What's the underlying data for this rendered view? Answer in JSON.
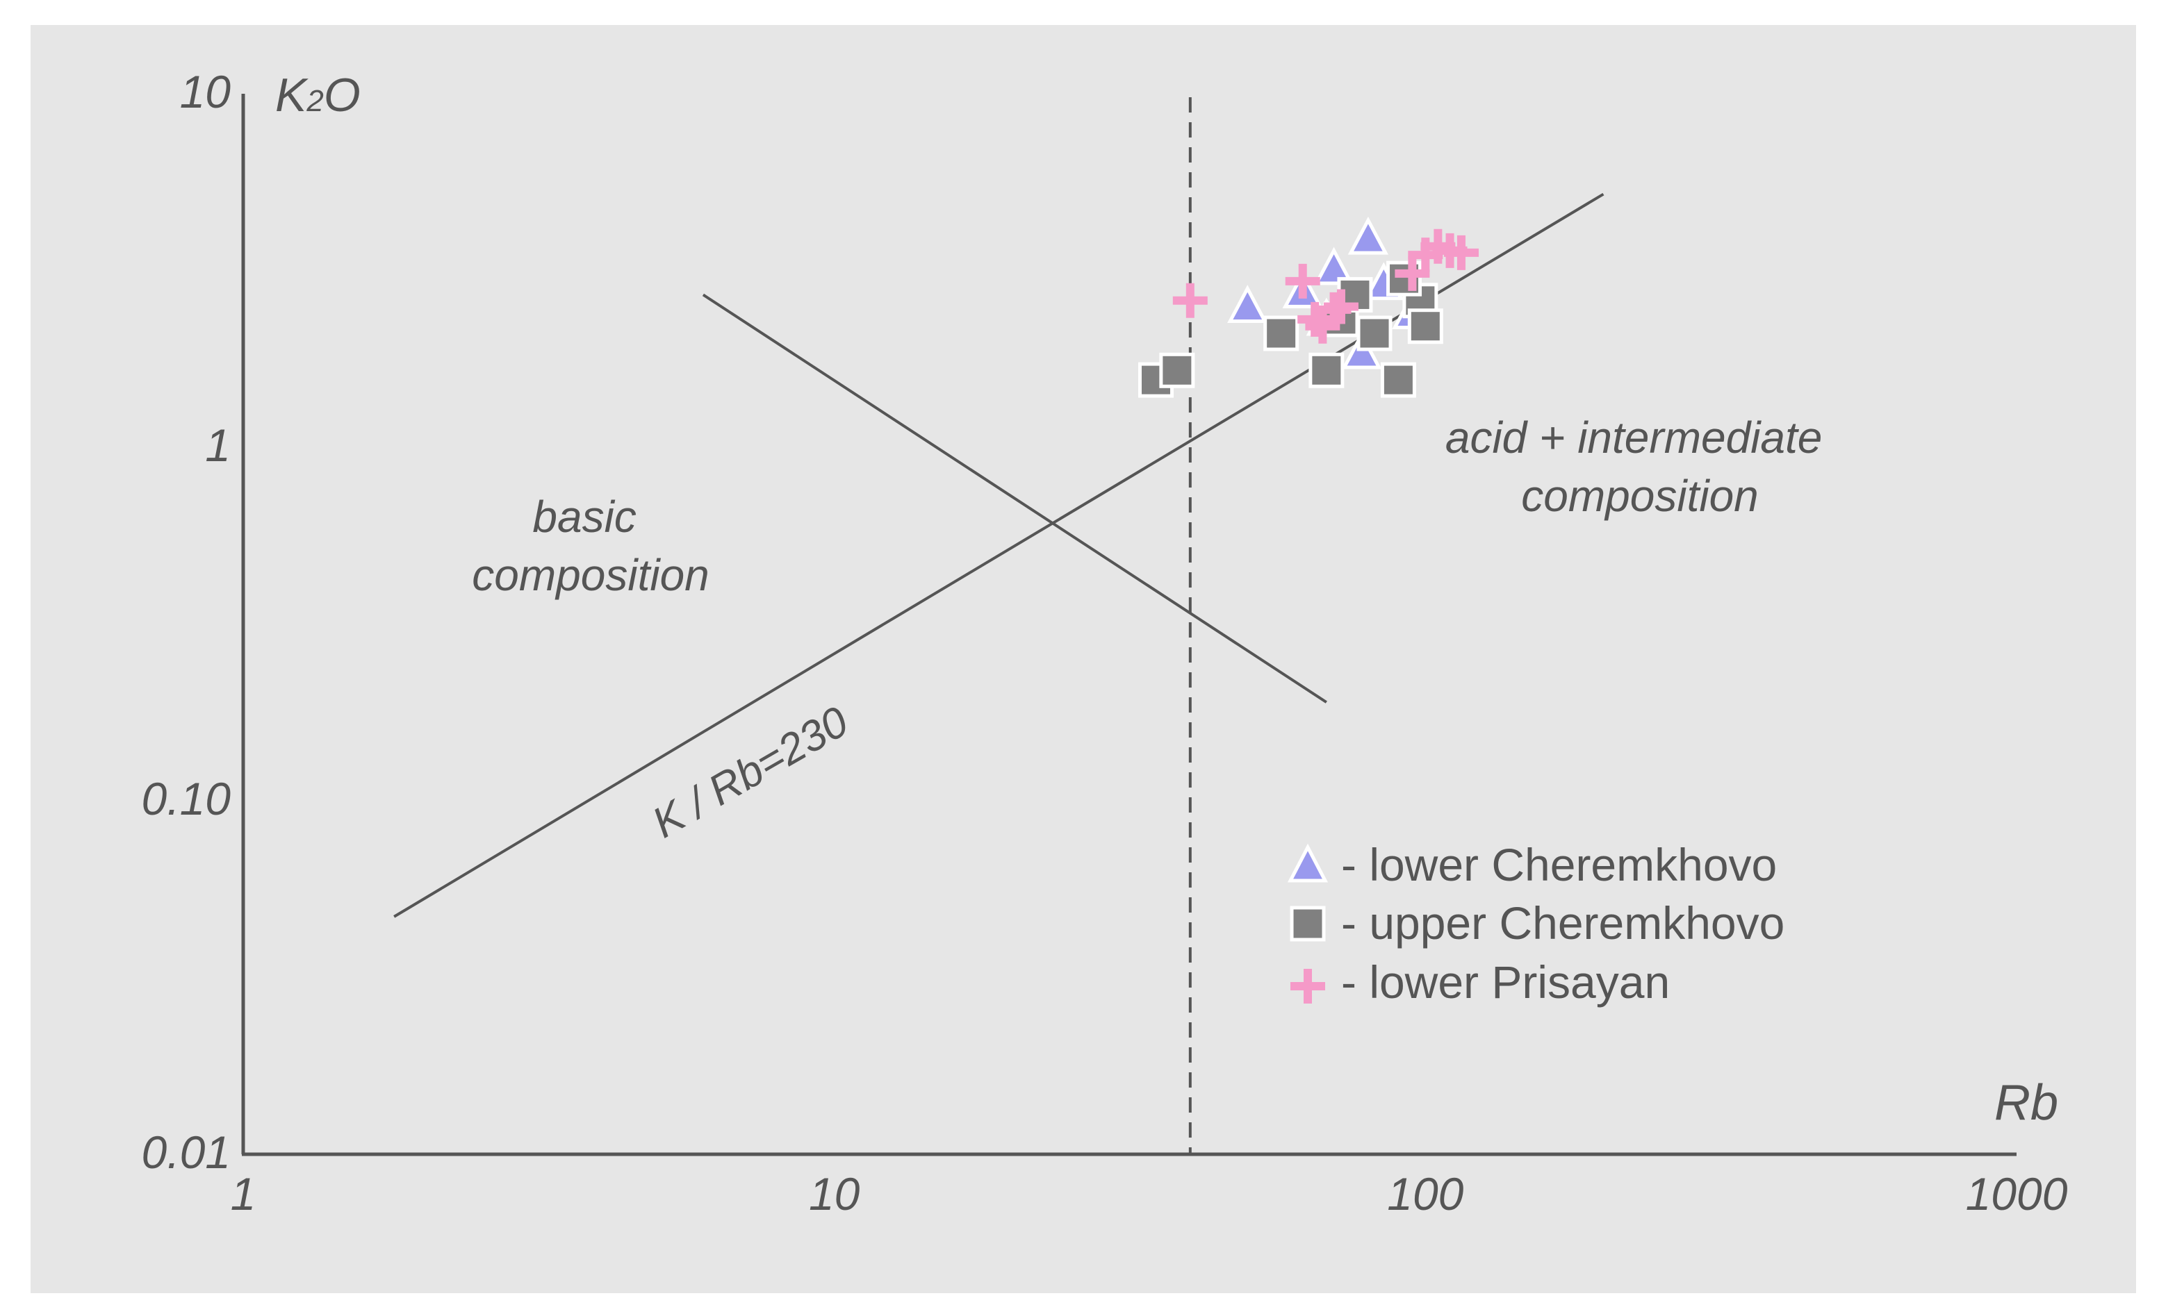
{
  "chart_data": {
    "type": "scatter",
    "xscale": "log",
    "yscale": "log",
    "xlim": [
      1,
      1000
    ],
    "ylim": [
      0.01,
      10
    ],
    "xticks": [
      "1",
      "10",
      "100",
      "1000"
    ],
    "yticks": [
      "0.01",
      "0.10",
      "1",
      "10"
    ],
    "xlabel": "Rb",
    "ylabel_main": "K",
    "ylabel_sub": "2",
    "ylabel_tail": "O",
    "grid": false,
    "legend_position": "lower-right",
    "lines": [
      {
        "name": "K / Rb=230",
        "style": "solid",
        "points": [
          [
            1.8,
            0.047
          ],
          [
            200,
            5.2
          ]
        ]
      },
      {
        "name": "boundary",
        "style": "solid",
        "points": [
          [
            6,
            2.7
          ],
          [
            68,
            0.19
          ]
        ]
      },
      {
        "name": "divider",
        "style": "dashed",
        "x": 40
      }
    ],
    "annotations": [
      {
        "lines": [
          "basic",
          "composition"
        ],
        "x": 10,
        "y": 0.55
      },
      {
        "lines": [
          "acid + intermediate",
          "composition"
        ],
        "x": 400,
        "y": 1.0
      }
    ],
    "line_label": "K / Rb=230",
    "series": [
      {
        "name": "lower Cheremkhovo",
        "marker": "triangle",
        "color": "#9999ee",
        "points": [
          [
            50,
            2.5
          ],
          [
            62,
            2.75
          ],
          [
            70,
            3.2
          ],
          [
            80,
            3.9
          ],
          [
            68,
            2.3
          ],
          [
            78,
            1.85
          ],
          [
            85,
            2.9
          ],
          [
            95,
            2.4
          ]
        ]
      },
      {
        "name": "upper Cheremkhovo",
        "marker": "square",
        "color": "#808080",
        "points": [
          [
            35,
            1.55
          ],
          [
            38,
            1.65
          ],
          [
            57,
            2.1
          ],
          [
            68,
            1.65
          ],
          [
            72,
            2.3
          ],
          [
            76,
            2.7
          ],
          [
            82,
            2.1
          ],
          [
            90,
            1.55
          ],
          [
            98,
            2.6
          ],
          [
            100,
            2.2
          ],
          [
            92,
            3.0
          ]
        ]
      },
      {
        "name": "lower Prisayan",
        "marker": "plus",
        "color": "#f59ac8",
        "points": [
          [
            40,
            2.6
          ],
          [
            62,
            2.95
          ],
          [
            65,
            2.3
          ],
          [
            70,
            2.45
          ],
          [
            72,
            2.5
          ],
          [
            67,
            2.2
          ],
          [
            95,
            3.1
          ],
          [
            100,
            3.5
          ],
          [
            105,
            3.7
          ],
          [
            110,
            3.6
          ],
          [
            115,
            3.55
          ]
        ]
      }
    ]
  },
  "legend": {
    "items": [
      {
        "label": "- lower Cheremkhovo"
      },
      {
        "label": "- upper Cheremkhovo"
      },
      {
        "label": "- lower Prisayan"
      }
    ]
  }
}
